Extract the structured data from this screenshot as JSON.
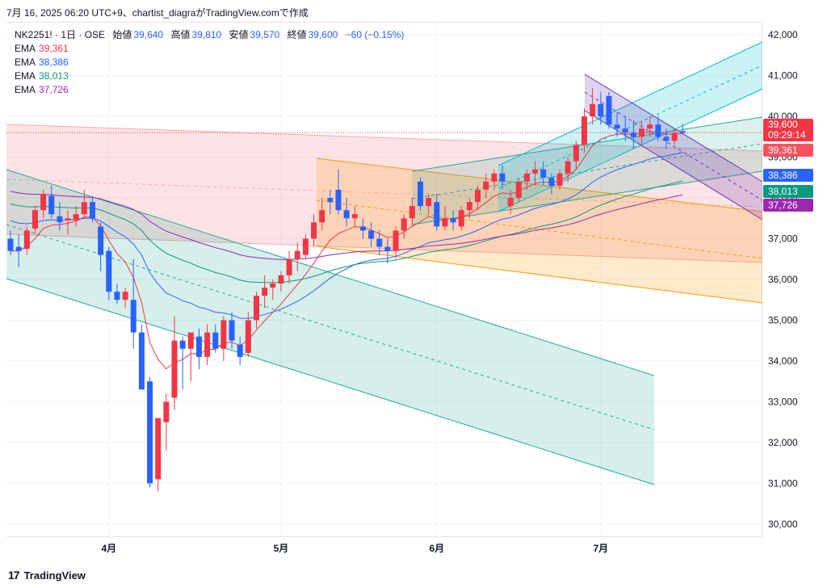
{
  "header": {
    "caption": "7月 16, 2025 06:20 UTC+9、chartist_diagraがTradingView.comで作成"
  },
  "legend": {
    "symbol": "NK2251! · 1日 · OSE",
    "open_label": "始値",
    "open": "39,640",
    "high_label": "高値",
    "high": "39,810",
    "low_label": "安値",
    "low": "39,570",
    "close_label": "終値",
    "close": "39,600",
    "change": "−60 (−0.15%)",
    "ema": [
      {
        "label": "EMA",
        "value": "39,361",
        "color": "#f23645"
      },
      {
        "label": "EMA",
        "value": "38,386",
        "color": "#2962ff"
      },
      {
        "label": "EMA",
        "value": "38,013",
        "color": "#089981"
      },
      {
        "label": "EMA",
        "value": "37,726",
        "color": "#9c27b0"
      }
    ]
  },
  "price_tags": {
    "last": "39,600",
    "countdown": "09:29:14",
    "ema1": "39,361",
    "ema2": "38,386",
    "ema3": "38,013",
    "ema4": "37,726"
  },
  "footer": {
    "brand": "TradingView"
  },
  "chart_data": {
    "type": "candlestick",
    "ylim": [
      29700,
      42300
    ],
    "y_ticks": [
      30000,
      31000,
      32000,
      33000,
      34000,
      35000,
      36000,
      37000,
      38000,
      39000,
      40000,
      41000,
      42000
    ],
    "y_tick_labels": [
      "30,000",
      "31,000",
      "32,000",
      "33,000",
      "34,000",
      "35,000",
      "36,000",
      "37,000",
      "38,000",
      "39,000",
      "40,000",
      "41,000",
      "42,000"
    ],
    "x_ticks": [
      {
        "label": "4月",
        "bar": 12
      },
      {
        "label": "5月",
        "bar": 33
      },
      {
        "label": "6月",
        "bar": 52
      },
      {
        "label": "7月",
        "bar": 72
      }
    ],
    "candles": [
      [
        37000,
        37200,
        36600,
        36700
      ],
      [
        36800,
        37100,
        36300,
        36700
      ],
      [
        36750,
        37300,
        36600,
        37200
      ],
      [
        37250,
        37800,
        37100,
        37700
      ],
      [
        37700,
        38200,
        37500,
        38100
      ],
      [
        38050,
        38300,
        37500,
        37600
      ],
      [
        37550,
        37900,
        37200,
        37400
      ],
      [
        37450,
        37700,
        37100,
        37500
      ],
      [
        37450,
        37800,
        37300,
        37600
      ],
      [
        37600,
        38200,
        37500,
        37900
      ],
      [
        37900,
        38000,
        37400,
        37500
      ],
      [
        37300,
        37400,
        36200,
        36600
      ],
      [
        36700,
        36800,
        35500,
        35700
      ],
      [
        35700,
        35900,
        35400,
        35500
      ],
      [
        35500,
        35800,
        35300,
        35700
      ],
      [
        35500,
        36500,
        34300,
        34700
      ],
      [
        34700,
        34900,
        33400,
        33300
      ],
      [
        33500,
        33600,
        30900,
        31000
      ],
      [
        31100,
        32600,
        30800,
        32600
      ],
      [
        32500,
        33200,
        31800,
        33000
      ],
      [
        33100,
        35100,
        32800,
        34500
      ],
      [
        34500,
        34600,
        33300,
        34300
      ],
      [
        34300,
        34600,
        33500,
        34700
      ],
      [
        34600,
        34800,
        33800,
        34100
      ],
      [
        34100,
        34900,
        33900,
        34700
      ],
      [
        34700,
        34900,
        34200,
        34300
      ],
      [
        34300,
        35100,
        34000,
        35000
      ],
      [
        35000,
        35200,
        34300,
        34500
      ],
      [
        34400,
        34600,
        33900,
        34100
      ],
      [
        34200,
        35200,
        34100,
        35000
      ],
      [
        35000,
        35700,
        34800,
        35600
      ],
      [
        35600,
        36100,
        35300,
        35800
      ],
      [
        35800,
        36000,
        35500,
        35900
      ],
      [
        35900,
        36200,
        35700,
        36100
      ],
      [
        36100,
        36700,
        35900,
        36500
      ],
      [
        36500,
        36900,
        36200,
        36700
      ],
      [
        36600,
        37100,
        36500,
        37000
      ],
      [
        37000,
        37600,
        36800,
        37400
      ],
      [
        37400,
        38000,
        37200,
        37700
      ],
      [
        38000,
        38200,
        37600,
        37900
      ],
      [
        38200,
        38700,
        37600,
        37700
      ],
      [
        37700,
        38000,
        37300,
        37500
      ],
      [
        37500,
        37800,
        37300,
        37600
      ],
      [
        37300,
        37500,
        37000,
        37200
      ],
      [
        37200,
        37400,
        36800,
        37000
      ],
      [
        37000,
        37200,
        36600,
        36800
      ],
      [
        36800,
        37000,
        36400,
        36700
      ],
      [
        36700,
        37300,
        36500,
        37200
      ],
      [
        37200,
        37600,
        37000,
        37500
      ],
      [
        37500,
        38000,
        37300,
        37800
      ],
      [
        38400,
        38500,
        37700,
        37800
      ],
      [
        37800,
        38100,
        37600,
        38000
      ],
      [
        37900,
        38100,
        37200,
        37300
      ],
      [
        37300,
        37800,
        37200,
        37500
      ],
      [
        37500,
        37700,
        37200,
        37400
      ],
      [
        37300,
        37800,
        37200,
        37700
      ],
      [
        37700,
        38000,
        37500,
        37900
      ],
      [
        37900,
        38300,
        37700,
        38200
      ],
      [
        38200,
        38600,
        38000,
        38400
      ],
      [
        38400,
        38700,
        38200,
        38600
      ],
      [
        38600,
        38800,
        38200,
        38400
      ],
      [
        37800,
        38200,
        37600,
        38000
      ],
      [
        38000,
        38500,
        37900,
        38400
      ],
      [
        38400,
        38700,
        38200,
        38600
      ],
      [
        38600,
        38900,
        38300,
        38700
      ],
      [
        38700,
        38900,
        38300,
        38500
      ],
      [
        38500,
        38600,
        38100,
        38300
      ],
      [
        38300,
        38700,
        38200,
        38600
      ],
      [
        38600,
        39000,
        38400,
        38900
      ],
      [
        38900,
        39400,
        38700,
        39300
      ],
      [
        39300,
        40200,
        39100,
        40000
      ],
      [
        40000,
        40700,
        39800,
        40300
      ],
      [
        40300,
        40600,
        39800,
        40000
      ],
      [
        40500,
        40600,
        39700,
        39800
      ],
      [
        39800,
        40100,
        39500,
        39700
      ],
      [
        39700,
        40000,
        39400,
        39600
      ],
      [
        39600,
        39900,
        39200,
        39500
      ],
      [
        39500,
        39900,
        39300,
        39700
      ],
      [
        39700,
        40000,
        39500,
        39800
      ],
      [
        39800,
        40000,
        39400,
        39500
      ],
      [
        39500,
        39700,
        39200,
        39400
      ],
      [
        39400,
        39700,
        39300,
        39600
      ],
      [
        39640,
        39810,
        39570,
        39600
      ]
    ],
    "ema_series": [
      {
        "name": "EMA",
        "value": 39361,
        "color": "#f23645"
      },
      {
        "name": "EMA",
        "value": 38386,
        "color": "#2962ff"
      },
      {
        "name": "EMA",
        "value": 38013,
        "color": "#089981"
      },
      {
        "name": "EMA",
        "value": 37726,
        "color": "#9c27b0"
      }
    ],
    "last_price": 39600
  }
}
